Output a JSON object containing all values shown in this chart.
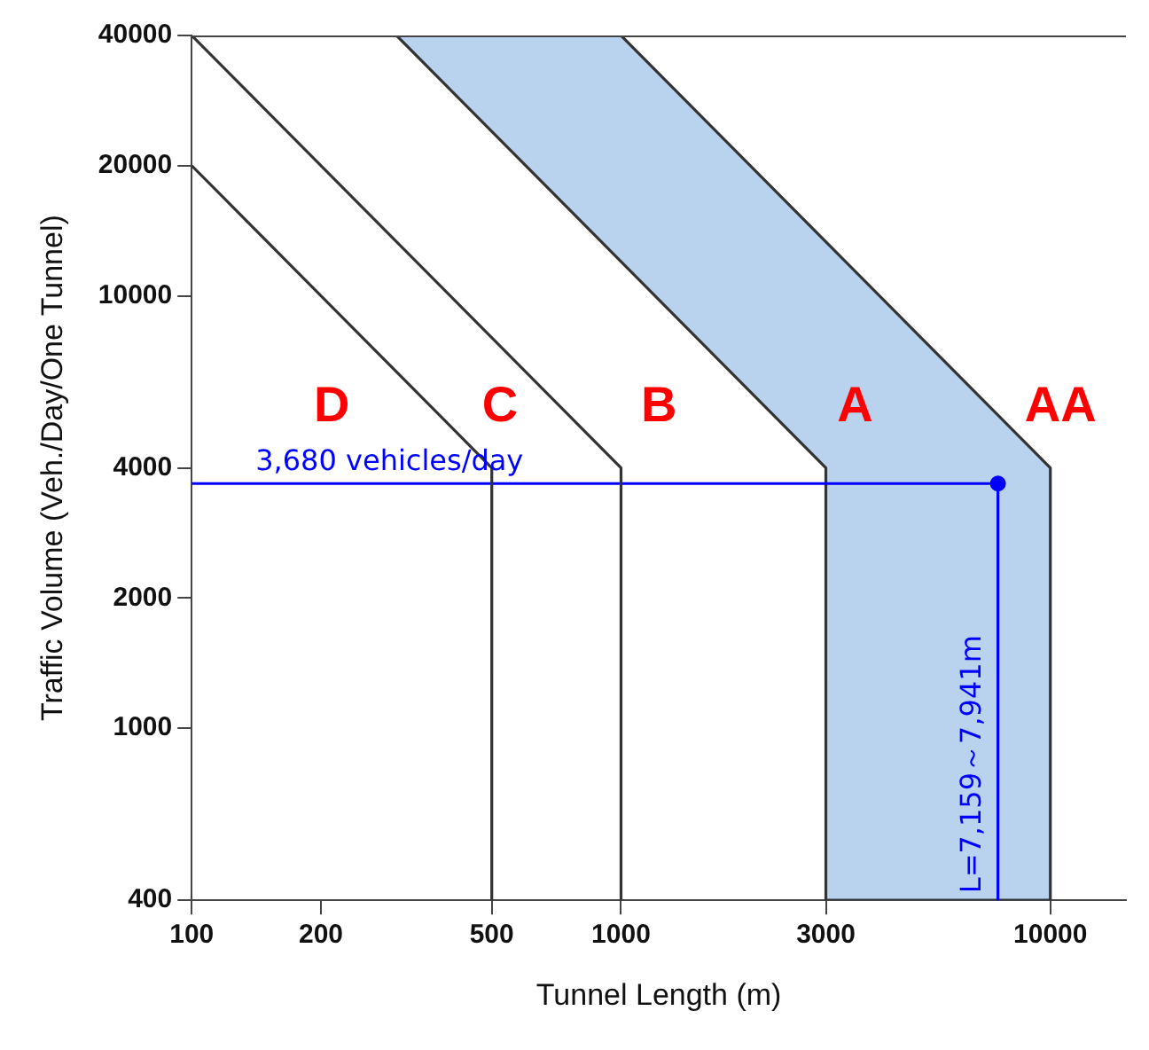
{
  "chart_data": {
    "type": "line",
    "xlabel": "Tunnel Length (m)",
    "ylabel": "Traffic Volume (Veh./Day/One Tunnel)",
    "log": "xy",
    "xlim": [
      100,
      15000
    ],
    "xticks": [
      100,
      200,
      500,
      1000,
      3000,
      10000
    ],
    "ylim": [
      400,
      40000
    ],
    "yticks": [
      400,
      1000,
      2000,
      4000,
      10000,
      20000,
      40000
    ],
    "series": [
      {
        "type": "area",
        "color": "#b9d3ee",
        "x": [
          300,
          3000,
          3000,
          10000,
          10000,
          1000
        ],
        "values": [
          40000,
          4000,
          400,
          400,
          4000,
          40000
        ]
      },
      {
        "type": "line",
        "color": "#333333",
        "x": [
          100,
          500,
          500
        ],
        "values": [
          20000,
          4000,
          400
        ]
      },
      {
        "type": "line",
        "color": "#333333",
        "x": [
          100,
          1000,
          1000
        ],
        "values": [
          40000,
          4000,
          400
        ]
      },
      {
        "type": "line",
        "name": "3,680 vehicles/day",
        "color": "#0000ff",
        "x": [
          100,
          7550
        ],
        "values": [
          3680,
          3680
        ]
      },
      {
        "type": "line",
        "name": "L=7,159～7,941m",
        "color": "#0000ff",
        "x": [
          7550,
          7550
        ],
        "values": [
          3680,
          400
        ]
      },
      {
        "type": "scatter",
        "color": "#0000ff",
        "marker": "circle",
        "x": [
          7550
        ],
        "values": [
          3680
        ]
      }
    ],
    "annotations": [
      "D",
      "C",
      "B",
      "A",
      "AA"
    ]
  }
}
